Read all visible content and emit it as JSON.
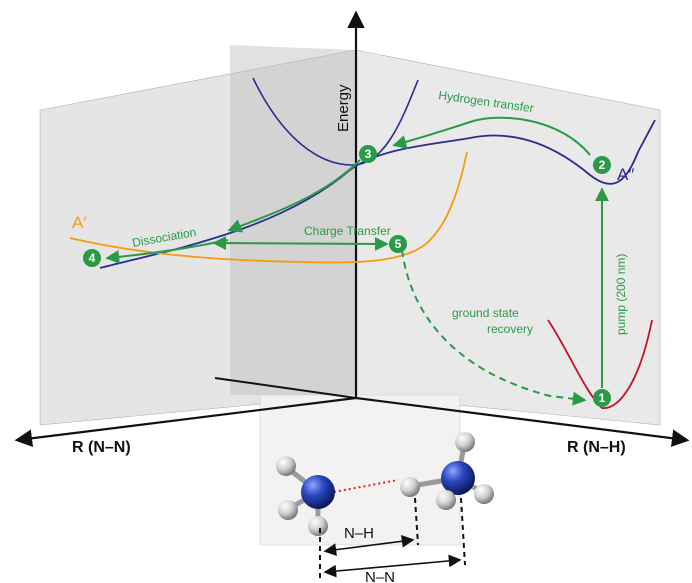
{
  "axes": {
    "energy": "Energy",
    "left": "R (N–N)",
    "right": "R (N–H)"
  },
  "curves": {
    "a_prime": "A′",
    "a_double_prime": "A″"
  },
  "annotations": {
    "hydrogen_transfer": "Hydrogen transfer",
    "dissociation": "Dissociation",
    "charge_transfer": "Charge Transfer",
    "pump": "pump (200 nm)",
    "recovery_line1": "ground state",
    "recovery_line2": "recovery"
  },
  "steps": [
    "1",
    "2",
    "3",
    "4",
    "5"
  ],
  "molecule": {
    "nh_label": "N–H",
    "nn_label": "N–N"
  },
  "colors": {
    "green": "#2a9a47",
    "purple": "#2b2d8f",
    "orange": "#f39c12",
    "red": "#c0122c",
    "nitrogen": "#1f3ea8",
    "hydrogen": "#d9d9d9"
  },
  "icons": {
    "nitrogen_atom": "blue-sphere",
    "hydrogen_atom": "white-sphere"
  }
}
